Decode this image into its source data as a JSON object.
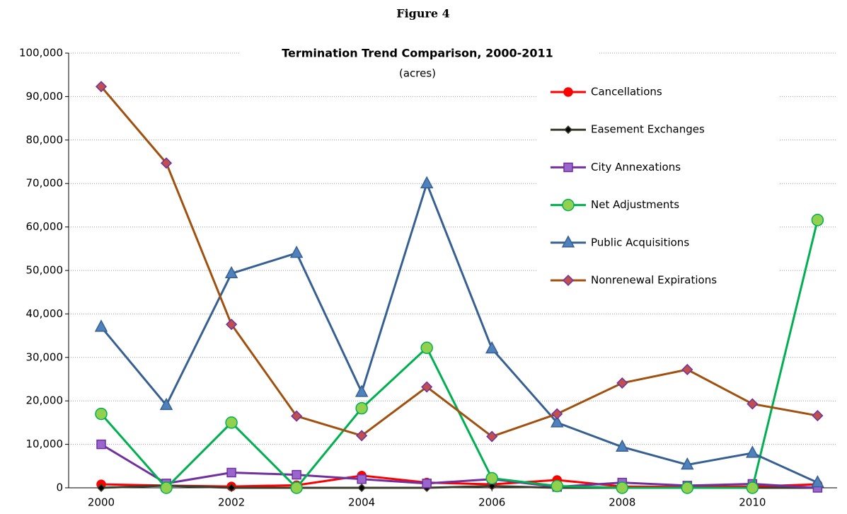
{
  "figure_label": "Figure 4",
  "chart_data": {
    "type": "line",
    "title": "Termination Trend Comparison, 2000-2011",
    "subtitle": "(acres)",
    "x": [
      2000,
      2001,
      2002,
      2003,
      2004,
      2005,
      2006,
      2007,
      2008,
      2009,
      2010,
      2011
    ],
    "xlim": [
      1999.5,
      2011.3
    ],
    "xticks": [
      2000,
      2002,
      2004,
      2006,
      2008,
      2010
    ],
    "ylim": [
      0,
      100000
    ],
    "yticks": [
      0,
      {
        "value": 10000,
        "label": "10,000"
      },
      {
        "value": 20000,
        "label": "20,000"
      },
      {
        "value": 30000,
        "label": "30,000"
      },
      {
        "value": 40000,
        "label": "40,000"
      },
      {
        "value": 50000,
        "label": "50,000"
      },
      {
        "value": 60000,
        "label": "60,000"
      },
      {
        "value": 70000,
        "label": "70,000"
      },
      {
        "value": 80000,
        "label": "80,000"
      },
      {
        "value": 90000,
        "label": "90,000"
      },
      {
        "value": 100000,
        "label": "100,000"
      }
    ],
    "grid": true,
    "legend": "upper right",
    "series": [
      {
        "name": "Cancellations",
        "color": "#ff0000",
        "marker": "circle",
        "marker_color": "#ff0000",
        "values": [
          800,
          500,
          300,
          600,
          2800,
          1200,
          800,
          1800,
          300,
          200,
          300,
          800
        ]
      },
      {
        "name": "Easement Exchanges",
        "color": "#3d3d2d",
        "marker": "diamond",
        "marker_color": "#000000",
        "values": [
          0,
          500,
          0,
          0,
          0,
          0,
          400,
          0,
          0,
          0,
          0,
          0
        ]
      },
      {
        "name": "City Annexations",
        "color": "#7030a0",
        "marker": "square",
        "marker_color": "#9966cc",
        "values": [
          10000,
          1000,
          3500,
          3000,
          2000,
          1000,
          2000,
          200,
          1200,
          500,
          900,
          0
        ]
      },
      {
        "name": "Net Adjustments",
        "color": "#00b050",
        "marker": "circle",
        "marker_color": "#92d050",
        "values": [
          17000,
          0,
          15000,
          0,
          18300,
          32200,
          2200,
          400,
          0,
          0,
          0,
          61600
        ]
      },
      {
        "name": "Public Acquisitions",
        "color": "#376092",
        "marker": "triangle",
        "marker_color": "#4f81bd",
        "values": [
          37000,
          19000,
          49300,
          54000,
          22000,
          70000,
          32000,
          15000,
          9400,
          5300,
          8000,
          1200
        ]
      },
      {
        "name": "Nonrenewal Expirations",
        "color": "#a0500f",
        "marker": "diamond",
        "marker_color": "#c0504d",
        "values": [
          92300,
          74700,
          37600,
          16500,
          12000,
          23200,
          11800,
          17000,
          24100,
          27200,
          19300,
          16600
        ]
      }
    ]
  }
}
